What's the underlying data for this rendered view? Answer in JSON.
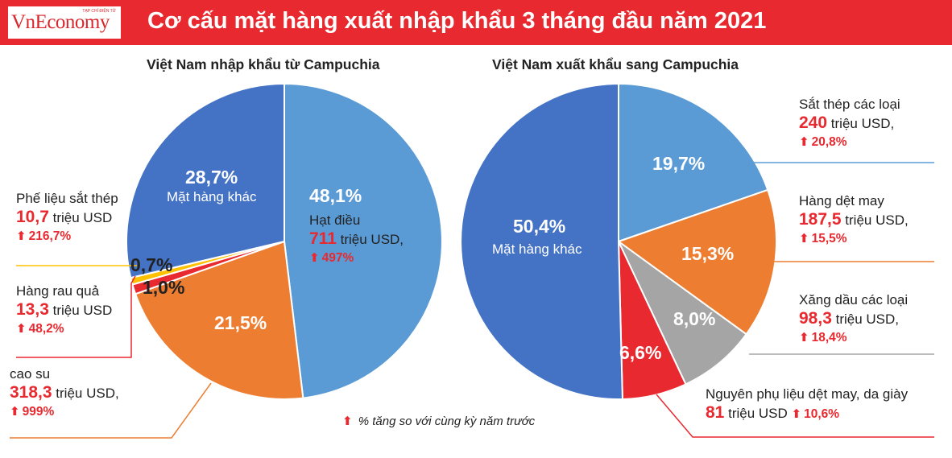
{
  "header": {
    "logo_text": "VnEconomy",
    "logo_tag": "TẠP CHÍ ĐIỆN TỬ",
    "title": "Cơ cấu mặt hàng xuất nhập khẩu 3 tháng đầu năm 2021"
  },
  "footnote": "% tăng so với cùng kỳ năm trước",
  "colors": {
    "header_red": "#e8292f",
    "accent_red": "#e8292f",
    "dark_blue": "#4472c4",
    "light_blue": "#5b9bd5",
    "orange": "#ed7d31",
    "gray": "#a5a5a5",
    "yellow": "#ffc000"
  },
  "labels": {
    "import": {
      "scrap": {
        "name": "Phế liệu sắt thép",
        "value": "10,7",
        "unit": "triệu USD",
        "growth": "216,7%"
      },
      "veg": {
        "name": "Hàng rau quả",
        "value": "13,3",
        "unit": "triệu USD",
        "growth": "48,2%"
      },
      "rubber": {
        "name": "cao su",
        "value": "318,3",
        "unit": "triệu USD,",
        "growth": "999%"
      },
      "cashew": {
        "name": "Hạt điều",
        "value": "711",
        "unit": "triệu USD,",
        "growth": "497%"
      },
      "other": {
        "pct": "28,7%",
        "name": "Mặt hàng khác"
      },
      "cashew_pct": "48,1%",
      "rubber_pct": "21,5%",
      "small1_pct": "0,7%",
      "small2_pct": "1,0%"
    },
    "export": {
      "steel": {
        "name": "Sắt thép các loại",
        "value": "240",
        "unit": "triệu USD,",
        "growth": "20,8%"
      },
      "textile": {
        "name": "Hàng dệt may",
        "value": "187,5",
        "unit": "triệu USD,",
        "growth": "15,5%"
      },
      "fuel": {
        "name": "Xăng dầu các loại",
        "value": "98,3",
        "unit": "triệu USD,",
        "growth": "18,4%"
      },
      "materials": {
        "name": "Nguyên phụ liệu dệt may, da giày",
        "value": "81",
        "unit": "triệu USD",
        "growth": "10,6%"
      },
      "other": {
        "pct": "50,4%",
        "name": "Mặt hàng khác"
      },
      "steel_pct": "19,7%",
      "textile_pct": "15,3%",
      "fuel_pct": "8,0%",
      "materials_pct": "6,6%"
    }
  },
  "chart_data": [
    {
      "type": "pie",
      "title": "Việt Nam nhập khẩu từ Campuchia",
      "slices": [
        {
          "name": "Hạt điều",
          "value": 48.1,
          "color": "#5b9bd5"
        },
        {
          "name": "cao su",
          "value": 21.5,
          "color": "#ed7d31"
        },
        {
          "name": "Hàng rau quả",
          "value": 1.0,
          "color": "#e8292f"
        },
        {
          "name": "Phế liệu sắt thép",
          "value": 0.7,
          "color": "#ffc000"
        },
        {
          "name": "Mặt hàng khác",
          "value": 28.7,
          "color": "#4472c4"
        }
      ]
    },
    {
      "type": "pie",
      "title": "Việt Nam xuất khẩu sang Campuchia",
      "slices": [
        {
          "name": "Sắt thép các loại",
          "value": 19.7,
          "color": "#5b9bd5"
        },
        {
          "name": "Hàng dệt may",
          "value": 15.3,
          "color": "#ed7d31"
        },
        {
          "name": "Xăng dầu các loại",
          "value": 8.0,
          "color": "#a5a5a5"
        },
        {
          "name": "Nguyên phụ liệu dệt may, da giày",
          "value": 6.6,
          "color": "#e8292f"
        },
        {
          "name": "Mặt hàng khác",
          "value": 50.4,
          "color": "#4472c4"
        }
      ]
    }
  ]
}
